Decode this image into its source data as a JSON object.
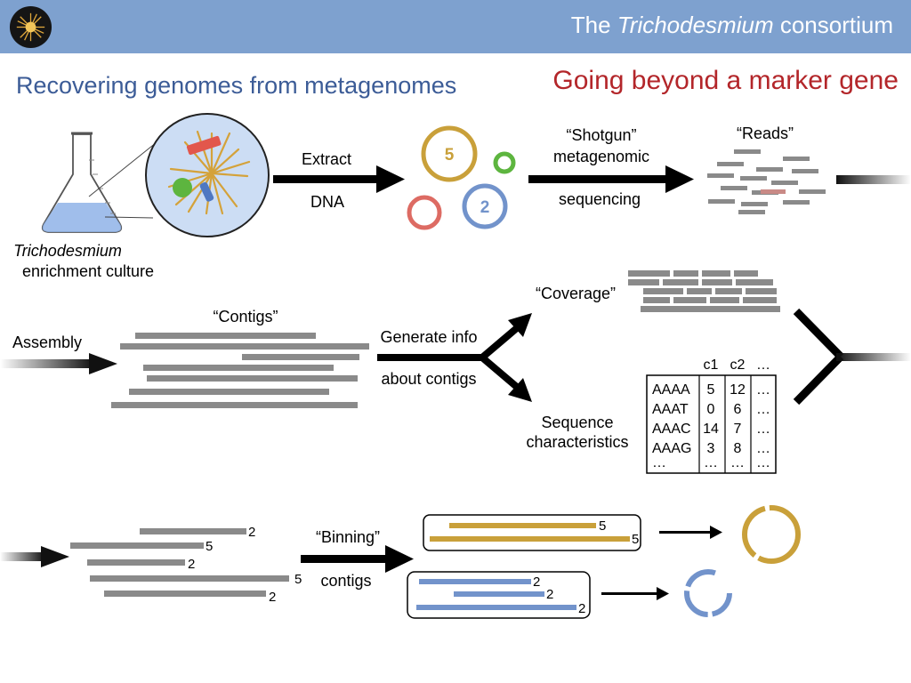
{
  "header": {
    "title_prefix": "The ",
    "title_italic": "Trichodesmium",
    "title_suffix": " consortium"
  },
  "subtitle_left": "Recovering genomes from metagenomes",
  "subtitle_right": "Going beyond a marker gene",
  "row1": {
    "culture_label_italic": "Trichodesmium",
    "culture_label_2": "enrichment culture",
    "extract_label": "Extract",
    "dna_label": "DNA",
    "circle_large_label": "5",
    "circle_mid_label": "2",
    "shotgun_label": "“Shotgun”",
    "metagenomic_label": "metagenomic",
    "sequencing_label": "sequencing",
    "reads_label": "“Reads”"
  },
  "row2": {
    "assembly_label": "Assembly",
    "contigs_label": "“Contigs”",
    "generate_label": "Generate info",
    "about_label": "about contigs",
    "coverage_label": "“Coverage”",
    "seqchar_label_1": "Sequence",
    "seqchar_label_2": "characteristics",
    "table": {
      "headers": [
        "c1",
        "c2",
        "…"
      ],
      "rows": [
        [
          "AAAA",
          "5",
          "12",
          "…"
        ],
        [
          "AAAT",
          "0",
          "6",
          "…"
        ],
        [
          "AAAC",
          "14",
          "7",
          "…"
        ],
        [
          "AAAG",
          "3",
          "8",
          "…"
        ],
        [
          "…",
          "…",
          "…",
          "…"
        ]
      ]
    }
  },
  "row3": {
    "contig_labels": [
      "2",
      "5",
      "2",
      "5",
      "2"
    ],
    "binning_label": "“Binning”",
    "contigs_label": "contigs",
    "bin_gold_labels": [
      "5",
      "5"
    ],
    "bin_blue_labels": [
      "2",
      "2",
      "2"
    ]
  },
  "colors": {
    "header": "#7EA1CF",
    "subtitle_left": "#3C5C97",
    "subtitle_right": "#B3262A",
    "gold": "#C9A03A",
    "blue": "#7293CB",
    "red": "#DD6B63",
    "green": "#5DB53F",
    "gray": "#888888"
  }
}
